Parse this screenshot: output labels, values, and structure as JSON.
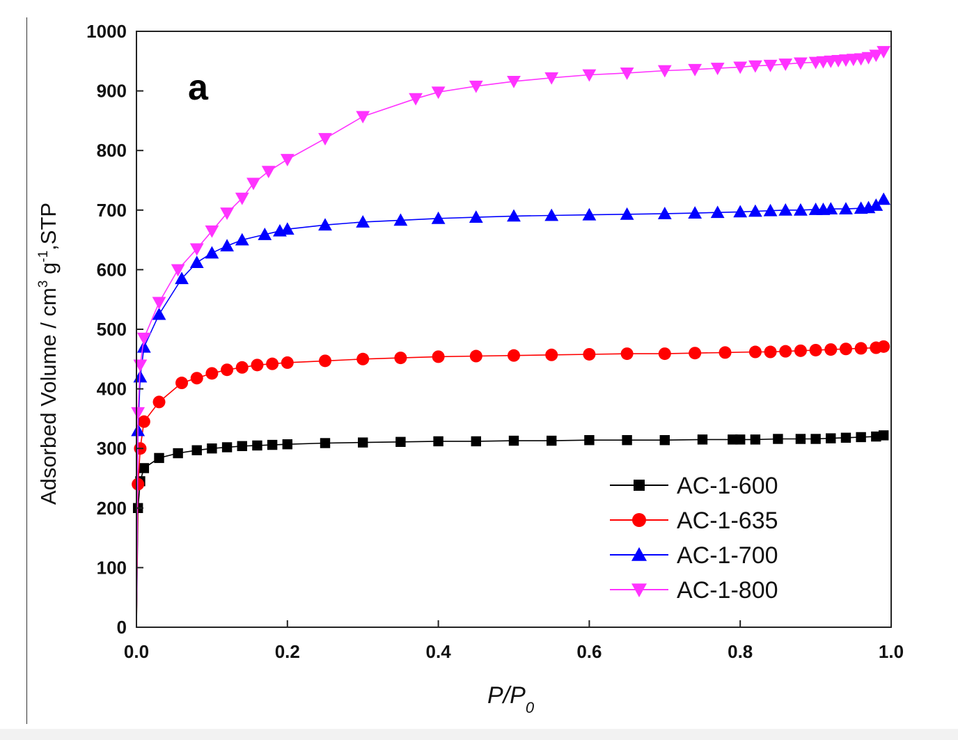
{
  "chart_data": {
    "type": "line",
    "panel_label": "a",
    "xlabel": {
      "base": "P/P",
      "sub": "0"
    },
    "ylabel": {
      "part1": "Adsorbed Volume / cm",
      "sup1": "3",
      "part2": " g",
      "sup2": "-1",
      "part3": ",STP"
    },
    "xlim": [
      0.0,
      1.0
    ],
    "ylim": [
      0,
      1000
    ],
    "xticks": [
      0.0,
      0.2,
      0.4,
      0.6,
      0.8,
      1.0
    ],
    "xtick_labels": [
      "0.0",
      "0.2",
      "0.4",
      "0.6",
      "0.8",
      "1.0"
    ],
    "yticks": [
      0,
      100,
      200,
      300,
      400,
      500,
      600,
      700,
      800,
      900,
      1000
    ],
    "ytick_labels": [
      "0",
      "100",
      "200",
      "300",
      "400",
      "500",
      "600",
      "700",
      "800",
      "900",
      "1000"
    ],
    "grid": false,
    "legend_position": "bottom-right",
    "series": [
      {
        "name": "AC-1-600",
        "color": "#000000",
        "marker": "square",
        "x": [
          0.0,
          0.002,
          0.005,
          0.01,
          0.03,
          0.055,
          0.08,
          0.1,
          0.12,
          0.14,
          0.16,
          0.18,
          0.2,
          0.25,
          0.3,
          0.35,
          0.4,
          0.45,
          0.5,
          0.55,
          0.6,
          0.65,
          0.7,
          0.75,
          0.79,
          0.8,
          0.82,
          0.85,
          0.88,
          0.9,
          0.92,
          0.94,
          0.96,
          0.98,
          0.99
        ],
        "y": [
          0,
          200,
          245,
          267,
          284,
          292,
          297,
          300,
          302,
          304,
          305,
          306,
          307,
          309,
          310,
          311,
          312,
          312,
          313,
          313,
          314,
          314,
          314,
          315,
          315,
          315,
          315,
          316,
          316,
          316,
          317,
          318,
          319,
          320,
          322
        ]
      },
      {
        "name": "AC-1-635",
        "color": "#ff0000",
        "marker": "circle",
        "x": [
          0.0,
          0.002,
          0.005,
          0.01,
          0.03,
          0.06,
          0.08,
          0.1,
          0.12,
          0.14,
          0.16,
          0.18,
          0.2,
          0.25,
          0.3,
          0.35,
          0.4,
          0.45,
          0.5,
          0.55,
          0.6,
          0.65,
          0.7,
          0.74,
          0.78,
          0.82,
          0.84,
          0.86,
          0.88,
          0.9,
          0.92,
          0.94,
          0.96,
          0.98,
          0.99
        ],
        "y": [
          0,
          240,
          300,
          345,
          378,
          410,
          418,
          426,
          432,
          436,
          440,
          442,
          444,
          447,
          450,
          452,
          454,
          455,
          456,
          457,
          458,
          459,
          459,
          460,
          461,
          462,
          462,
          463,
          464,
          465,
          466,
          467,
          468,
          469,
          471
        ]
      },
      {
        "name": "AC-1-700",
        "color": "#0000ff",
        "marker": "triangle-up",
        "x": [
          0.0,
          0.002,
          0.005,
          0.01,
          0.03,
          0.06,
          0.08,
          0.1,
          0.12,
          0.14,
          0.17,
          0.19,
          0.2,
          0.25,
          0.3,
          0.35,
          0.4,
          0.45,
          0.5,
          0.55,
          0.6,
          0.65,
          0.7,
          0.74,
          0.77,
          0.8,
          0.82,
          0.84,
          0.86,
          0.88,
          0.9,
          0.91,
          0.92,
          0.94,
          0.96,
          0.97,
          0.98,
          0.99
        ],
        "y": [
          0,
          330,
          420,
          470,
          525,
          585,
          612,
          628,
          640,
          650,
          659,
          665,
          668,
          675,
          680,
          683,
          686,
          688,
          690,
          691,
          692,
          693,
          694,
          695,
          696,
          697,
          698,
          699,
          700,
          700,
          701,
          701,
          702,
          702,
          703,
          704,
          708,
          718
        ]
      },
      {
        "name": "AC-1-800",
        "color": "#ff33ff",
        "marker": "triangle-down",
        "x": [
          0.0,
          0.002,
          0.005,
          0.01,
          0.03,
          0.055,
          0.08,
          0.1,
          0.12,
          0.14,
          0.155,
          0.175,
          0.2,
          0.25,
          0.3,
          0.37,
          0.4,
          0.45,
          0.5,
          0.55,
          0.6,
          0.65,
          0.7,
          0.74,
          0.77,
          0.8,
          0.82,
          0.84,
          0.86,
          0.88,
          0.9,
          0.91,
          0.92,
          0.93,
          0.94,
          0.95,
          0.96,
          0.97,
          0.98,
          0.99
        ],
        "y": [
          0,
          360,
          440,
          485,
          545,
          600,
          635,
          665,
          695,
          720,
          745,
          765,
          785,
          820,
          857,
          887,
          898,
          908,
          916,
          922,
          927,
          930,
          934,
          936,
          938,
          940,
          942,
          943,
          945,
          947,
          948,
          949,
          950,
          951,
          952,
          953,
          954,
          956,
          960,
          966
        ]
      }
    ]
  }
}
